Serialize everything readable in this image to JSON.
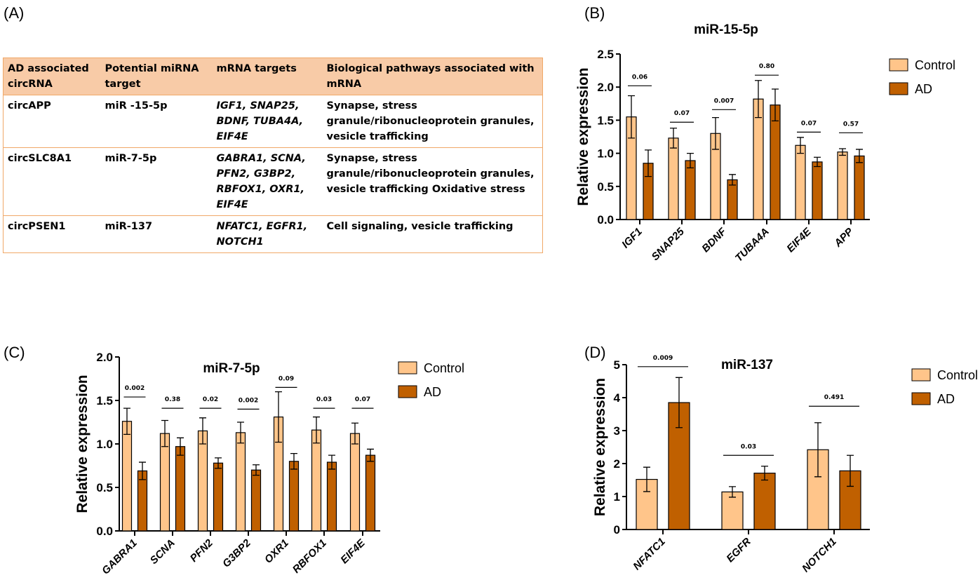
{
  "panels": {
    "a": "(A)",
    "b": "(B)",
    "c": "(C)",
    "d": "(D)"
  },
  "table": {
    "headers": [
      "AD associated circRNA",
      "Potential miRNA target",
      "mRNA targets",
      "Biological pathways associated with mRNA"
    ],
    "rows": [
      [
        "circAPP",
        "miR -15-5p",
        "IGF1, SNAP25, BDNF, TUBA4A, EIF4E",
        "Synapse, stress granule/ribonucleoprotein granules, vesicle trafficking"
      ],
      [
        "circSLC8A1",
        "miR-7-5p",
        "GABRA1, SCNA, PFN2, G3BP2, RBFOX1, OXR1, EIF4E",
        "Synapse, stress granule/ribonucleoprotein granules, vesicle trafficking Oxidative stress"
      ],
      [
        "circPSEN1",
        "miR-137",
        "NFATC1, EGFR1, NOTCH1",
        "Cell signaling, vesicle trafficking"
      ]
    ],
    "header_color": "#f8cba7",
    "border_color": "#f0a868"
  },
  "colors": {
    "control": "#ffc58a",
    "ad": "#c06000"
  },
  "chart_data": [
    {
      "type": "bar",
      "panel": "B",
      "title": "miR-15-5p",
      "ylabel": "Relative expression",
      "xlabel": "",
      "ylim": [
        0,
        2.5
      ],
      "yticks": [
        "0.0",
        "0.5",
        "1.0",
        "1.5",
        "2.0",
        "2.5"
      ],
      "ytick_values": [
        0,
        0.5,
        1.0,
        1.5,
        2.0,
        2.5
      ],
      "categories": [
        "IGF1",
        "SNAP25",
        "BDNF",
        "TUBA4A",
        "EIF4E",
        "APP"
      ],
      "series": [
        {
          "name": "Control",
          "values": [
            1.55,
            1.23,
            1.3,
            1.82,
            1.12,
            1.02
          ],
          "errors": [
            0.32,
            0.15,
            0.24,
            0.28,
            0.12,
            0.05
          ]
        },
        {
          "name": "AD",
          "values": [
            0.85,
            0.89,
            0.6,
            1.73,
            0.87,
            0.96
          ],
          "errors": [
            0.2,
            0.11,
            0.08,
            0.24,
            0.07,
            0.1
          ]
        }
      ],
      "p_values": [
        "0.06",
        "0.07",
        "0.007",
        "0.80",
        "0.07",
        "0.57"
      ],
      "bracket_levels": [
        2.02,
        1.47,
        1.66,
        2.18,
        1.32,
        1.31
      ],
      "legend": "top-right",
      "grid": false
    },
    {
      "type": "bar",
      "panel": "C",
      "title": "miR-7-5p",
      "ylabel": "Relative expression",
      "xlabel": "",
      "ylim": [
        0,
        2.0
      ],
      "yticks": [
        "0.0",
        "0.5",
        "1.0",
        "1.5",
        "2.0"
      ],
      "ytick_values": [
        0,
        0.5,
        1.0,
        1.5,
        2.0
      ],
      "categories": [
        "GABRA1",
        "SCNA",
        "PFN2",
        "G3BP2",
        "OXR1",
        "RBFOX1",
        "EIF4E"
      ],
      "series": [
        {
          "name": "Control",
          "values": [
            1.26,
            1.12,
            1.15,
            1.13,
            1.31,
            1.16,
            1.12
          ],
          "errors": [
            0.15,
            0.15,
            0.15,
            0.12,
            0.29,
            0.15,
            0.12
          ]
        },
        {
          "name": "AD",
          "values": [
            0.69,
            0.97,
            0.78,
            0.7,
            0.8,
            0.79,
            0.87
          ],
          "errors": [
            0.1,
            0.1,
            0.06,
            0.06,
            0.09,
            0.08,
            0.07
          ]
        }
      ],
      "p_values": [
        "0.002",
        "0.38",
        "0.02",
        "0.002",
        "0.09",
        "0.03",
        "0.07"
      ],
      "bracket_levels": [
        1.54,
        1.41,
        1.41,
        1.4,
        1.65,
        1.41,
        1.41
      ],
      "legend": "top-right",
      "grid": false
    },
    {
      "type": "bar",
      "panel": "D",
      "title": "miR-137",
      "ylabel": "Relative expression",
      "xlabel": "",
      "ylim": [
        0,
        5
      ],
      "yticks": [
        "0",
        "1",
        "2",
        "3",
        "4",
        "5"
      ],
      "ytick_values": [
        0,
        1,
        2,
        3,
        4,
        5
      ],
      "categories": [
        "NFATC1",
        "EGFR",
        "NOTCH1"
      ],
      "series": [
        {
          "name": "Control",
          "values": [
            1.52,
            1.14,
            2.42
          ],
          "errors": [
            0.37,
            0.16,
            0.82
          ]
        },
        {
          "name": "AD",
          "values": [
            3.85,
            1.71,
            1.78
          ],
          "errors": [
            0.76,
            0.21,
            0.47
          ]
        }
      ],
      "p_values": [
        "0.009",
        "0.03",
        "0.491"
      ],
      "bracket_levels": [
        4.94,
        2.25,
        3.74
      ],
      "legend": "top-right",
      "grid": false
    }
  ]
}
